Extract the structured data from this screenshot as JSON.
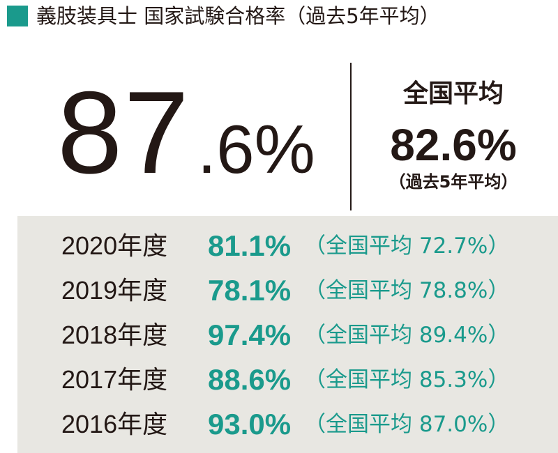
{
  "header": {
    "title": "義肢装具士 国家試験合格率（過去5年平均）"
  },
  "main": {
    "rate_int": "87",
    "rate_dec": ".6%"
  },
  "national": {
    "label": "全国平均",
    "rate": "82.6%",
    "note": "（過去5年平均）"
  },
  "table": {
    "rows": [
      {
        "year": "2020年度",
        "rate": "81.1%",
        "national": "（全国平均 72.7%）"
      },
      {
        "year": "2019年度",
        "rate": "78.1%",
        "national": "（全国平均 78.8%）"
      },
      {
        "year": "2018年度",
        "rate": "97.4%",
        "national": "（全国平均 89.4%）"
      },
      {
        "year": "2017年度",
        "rate": "88.6%",
        "national": "（全国平均 85.3%）"
      },
      {
        "year": "2016年度",
        "rate": "93.0%",
        "national": "（全国平均 87.0%）"
      }
    ]
  }
}
